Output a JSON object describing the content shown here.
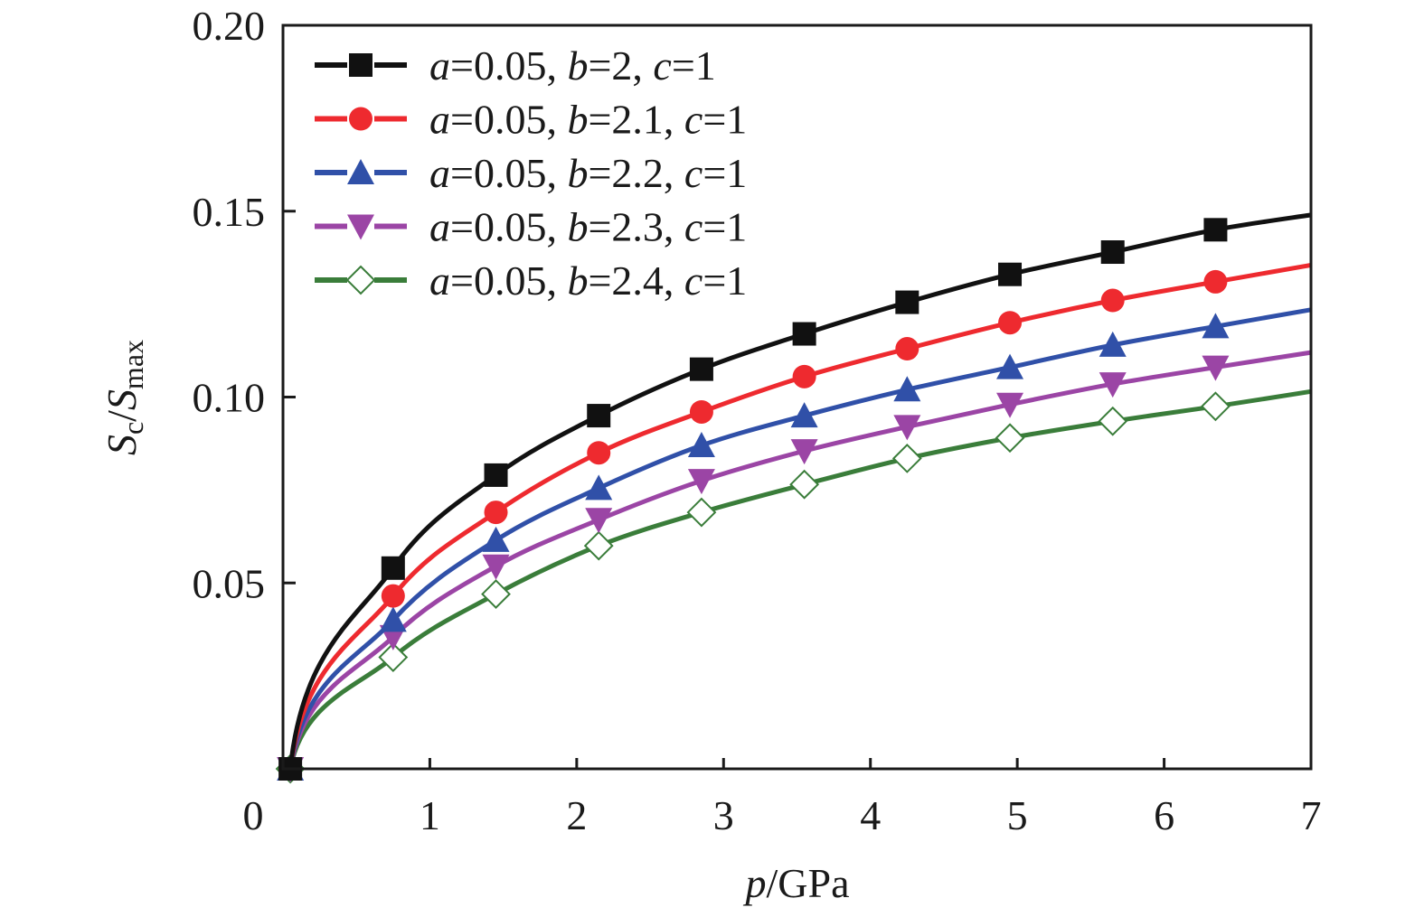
{
  "chart_data": {
    "type": "line",
    "title": "",
    "xlabel": "p/GPa",
    "ylabel": "Sc/Smax",
    "xlabel_parts": [
      {
        "text": "p",
        "italic": true
      },
      {
        "text": "/GPa",
        "italic": false
      }
    ],
    "ylabel_parts": [
      {
        "text": "S",
        "italic": true
      },
      {
        "text": "c",
        "sub": true
      },
      {
        "text": "/",
        "italic": false
      },
      {
        "text": "S",
        "italic": true
      },
      {
        "text": "max",
        "sub": true
      }
    ],
    "xlim": [
      0,
      7
    ],
    "ylim": [
      0,
      0.2
    ],
    "xticks": [
      "0",
      "1",
      "2",
      "3",
      "4",
      "5",
      "6",
      "7"
    ],
    "yticks": [
      "0.05",
      "0.10",
      "0.15",
      "0.20"
    ],
    "grid": false,
    "legend_position": "top-left",
    "x": [
      0.05,
      0.75,
      1.45,
      2.15,
      2.85,
      3.55,
      4.25,
      4.95,
      5.65,
      6.35,
      7.0
    ],
    "series": [
      {
        "name": "a=0.05, b=2, c=1",
        "color": "#111111",
        "marker": "square-filled",
        "values": [
          0.0,
          0.054,
          0.079,
          0.095,
          0.1075,
          0.117,
          0.1255,
          0.133,
          0.139,
          0.145,
          0.149
        ]
      },
      {
        "name": "a=0.05, b=2.1, c=1",
        "color": "#ee2a2f",
        "marker": "circle-filled",
        "values": [
          0.0,
          0.0465,
          0.069,
          0.085,
          0.096,
          0.1055,
          0.113,
          0.12,
          0.126,
          0.131,
          0.1355
        ]
      },
      {
        "name": "a=0.05, b=2.2, c=1",
        "color": "#3050a8",
        "marker": "triangle-up-filled",
        "values": [
          0.0,
          0.04,
          0.0615,
          0.0755,
          0.087,
          0.095,
          0.102,
          0.108,
          0.114,
          0.119,
          0.1235
        ]
      },
      {
        "name": "a=0.05, b=2.3, c=1",
        "color": "#9b45a5",
        "marker": "triangle-down-filled",
        "values": [
          0.0,
          0.0355,
          0.0545,
          0.067,
          0.0775,
          0.0855,
          0.092,
          0.098,
          0.1035,
          0.108,
          0.112
        ]
      },
      {
        "name": "a=0.05, b=2.4, c=1",
        "color": "#3a7d3a",
        "marker": "diamond-open",
        "values": [
          0.0,
          0.03,
          0.047,
          0.06,
          0.069,
          0.0765,
          0.0835,
          0.089,
          0.0935,
          0.0975,
          0.1015
        ]
      }
    ]
  }
}
